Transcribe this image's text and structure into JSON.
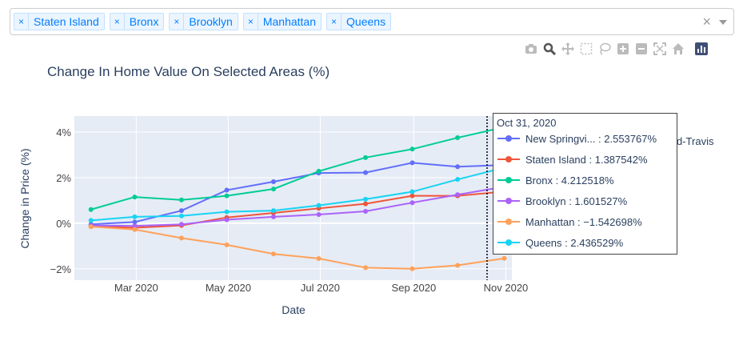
{
  "filter": {
    "chips": [
      "Staten Island",
      "Bronx",
      "Brooklyn",
      "Manhattan",
      "Queens"
    ],
    "chip_remove": "×",
    "clear": "×"
  },
  "modebar": {
    "icons": [
      "camera-icon",
      "zoom-icon",
      "pan-icon",
      "box-select-icon",
      "lasso-icon",
      "zoom-in-icon",
      "zoom-out-icon",
      "autoscale-icon",
      "home-icon",
      "plotly-logo-icon"
    ]
  },
  "legend_partial": "d-Travis",
  "tooltip": {
    "date": "Oct 31, 2020",
    "rows": [
      {
        "label": "New Springvi... : 2.553767%",
        "color": "#636efa"
      },
      {
        "label": "Staten Island : 1.387542%",
        "color": "#ef553b"
      },
      {
        "label": "Bronx : 4.212518%",
        "color": "#00cc96"
      },
      {
        "label": "Brooklyn : 1.601527%",
        "color": "#ab63fa"
      },
      {
        "label": "Manhattan : −1.542698%",
        "color": "#ffa15a"
      },
      {
        "label": "Queens : 2.436529%",
        "color": "#19d3f3"
      }
    ]
  },
  "chart_data": {
    "type": "line",
    "title": "Change In Home Value On Selected Areas (%)",
    "xlabel": "Date",
    "ylabel": "Change in Price (%)",
    "x": [
      "2020-01-31",
      "2020-02-29",
      "2020-03-31",
      "2020-04-30",
      "2020-05-31",
      "2020-06-30",
      "2020-07-31",
      "2020-08-31",
      "2020-09-30",
      "2020-10-31"
    ],
    "x_ticks": [
      "Mar 2020",
      "May 2020",
      "Jul 2020",
      "Sep 2020",
      "Nov 2020"
    ],
    "y_ticks": [
      "−2%",
      "0%",
      "2%",
      "4%"
    ],
    "ylim": [
      -2.5,
      4.7
    ],
    "grid": true,
    "series": [
      {
        "name": "New Springvi...",
        "color": "#636efa",
        "values": [
          -0.05,
          0.05,
          0.55,
          1.45,
          1.82,
          2.2,
          2.22,
          2.65,
          2.48,
          2.553767
        ]
      },
      {
        "name": "Staten Island",
        "color": "#ef553b",
        "values": [
          -0.15,
          -0.2,
          -0.1,
          0.25,
          0.45,
          0.65,
          0.85,
          1.2,
          1.2,
          1.387542
        ]
      },
      {
        "name": "Bronx",
        "color": "#00cc96",
        "values": [
          0.6,
          1.15,
          1.02,
          1.2,
          1.5,
          2.28,
          2.88,
          3.25,
          3.75,
          4.212518
        ]
      },
      {
        "name": "Brooklyn",
        "color": "#ab63fa",
        "values": [
          -0.1,
          -0.12,
          -0.05,
          0.15,
          0.28,
          0.38,
          0.52,
          0.9,
          1.25,
          1.601527
        ]
      },
      {
        "name": "Manhattan",
        "color": "#ffa15a",
        "values": [
          -0.15,
          -0.28,
          -0.65,
          -0.95,
          -1.35,
          -1.55,
          -1.95,
          -2.0,
          -1.85,
          -1.542698
        ]
      },
      {
        "name": "Queens",
        "color": "#19d3f3",
        "values": [
          0.12,
          0.28,
          0.32,
          0.5,
          0.55,
          0.78,
          1.05,
          1.38,
          1.92,
          2.436529
        ]
      }
    ],
    "hover_x": "2020-10-31"
  }
}
